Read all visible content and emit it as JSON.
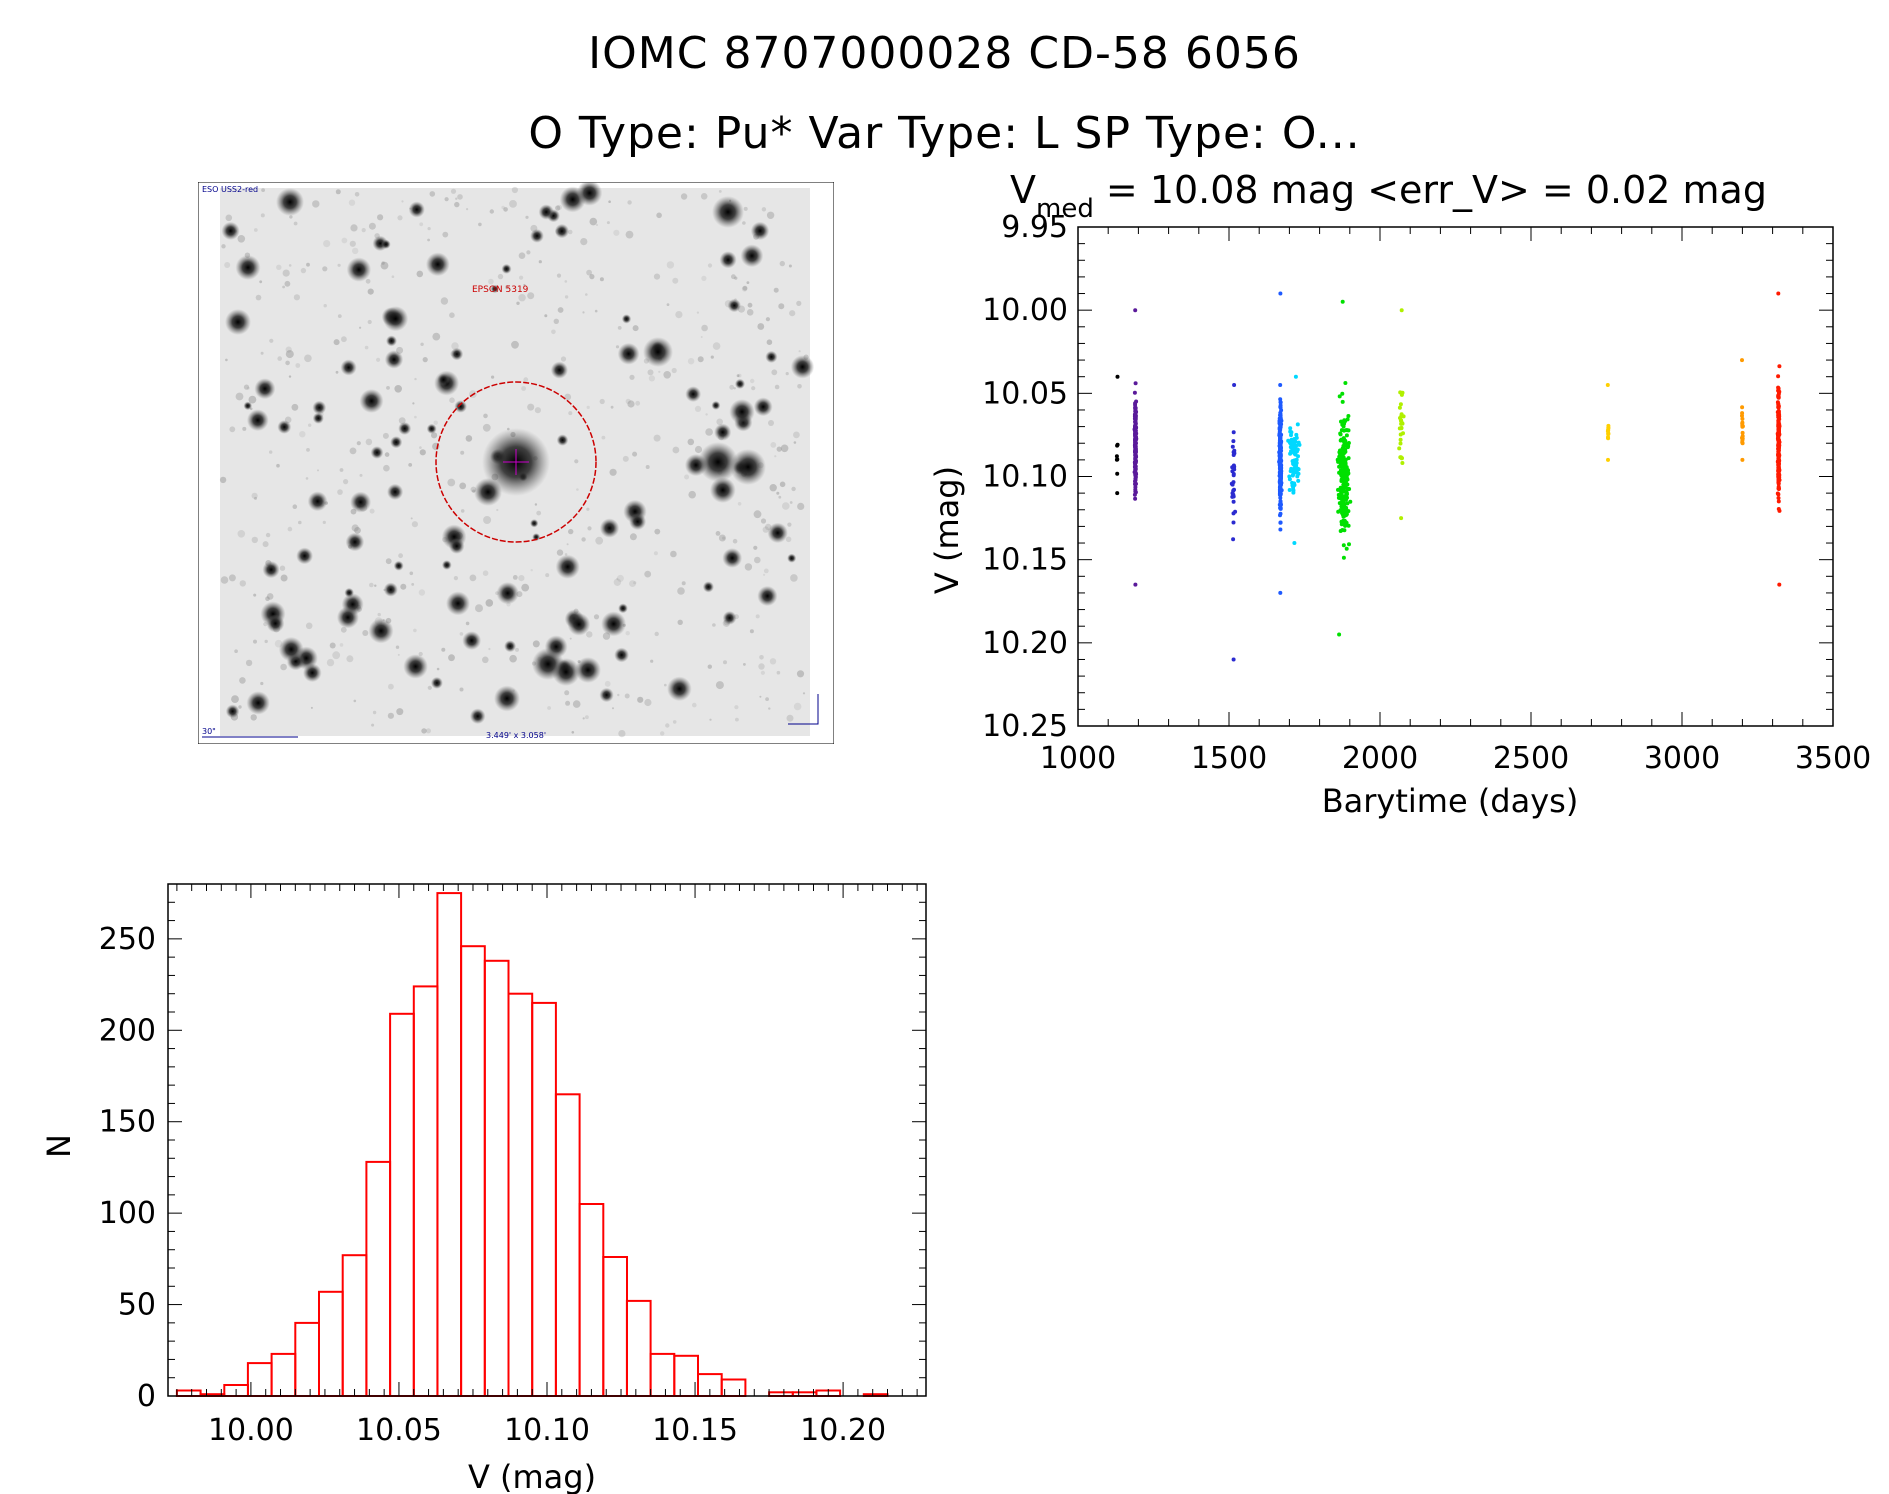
{
  "header": {
    "title_line1": "IOMC 8707000028   CD-58  6056",
    "title_line2": "O Type: Pu*  Var Type: L  SP Type: O..."
  },
  "finder_chart": {
    "survey_label": "ESO USS2-red",
    "object_label": "EPSON 5319",
    "scale_label": "30\"",
    "fov_label": "3.449' x 3.058'"
  },
  "chart_data": [
    {
      "type": "scatter",
      "title_prefix": "V",
      "title_subscript": "med",
      "title_rest": " = 10.08 mag <err_V> = 0.02 mag",
      "xlabel": "Barytime (days)",
      "ylabel": "V (mag)",
      "xlim": [
        1000,
        3500
      ],
      "ylim": [
        9.95,
        10.25
      ],
      "y_inverted": true,
      "xticks": [
        1000,
        1500,
        2000,
        2500,
        3000,
        3500
      ],
      "yticks": [
        "9.95",
        "10.00",
        "10.05",
        "10.10",
        "10.15",
        "10.20",
        "10.25"
      ],
      "series": [
        {
          "color": "#000000",
          "x_center": 1130,
          "y_center": 10.085,
          "y_min": 10.04,
          "y_max": 10.11,
          "x_spread": 4,
          "count": 8
        },
        {
          "color": "#5a1a9a",
          "x_center": 1190,
          "y_center": 10.08,
          "y_min": 10.0,
          "y_max": 10.165,
          "x_spread": 4,
          "count": 150
        },
        {
          "color": "#2b2bd0",
          "x_center": 1515,
          "y_center": 10.1,
          "y_min": 10.045,
          "y_max": 10.21,
          "x_spread": 8,
          "count": 30
        },
        {
          "color": "#1e5aff",
          "x_center": 1670,
          "y_center": 10.09,
          "y_min": 9.99,
          "y_max": 10.17,
          "x_spread": 5,
          "count": 260
        },
        {
          "color": "#00d8ff",
          "x_center": 1715,
          "y_center": 10.09,
          "y_min": 10.04,
          "y_max": 10.14,
          "x_spread": 30,
          "count": 90
        },
        {
          "color": "#00e000",
          "x_center": 1880,
          "y_center": 10.1,
          "y_min": 9.995,
          "y_max": 10.195,
          "x_spread": 28,
          "count": 220
        },
        {
          "color": "#b0f000",
          "x_center": 2070,
          "y_center": 10.07,
          "y_min": 10.0,
          "y_max": 10.125,
          "x_spread": 10,
          "count": 30
        },
        {
          "color": "#ffd000",
          "x_center": 2755,
          "y_center": 10.075,
          "y_min": 10.045,
          "y_max": 10.09,
          "x_spread": 3,
          "count": 14
        },
        {
          "color": "#ff9a00",
          "x_center": 3200,
          "y_center": 10.07,
          "y_min": 10.03,
          "y_max": 10.09,
          "x_spread": 3,
          "count": 18
        },
        {
          "color": "#ff1a00",
          "x_center": 3320,
          "y_center": 10.08,
          "y_min": 9.99,
          "y_max": 10.165,
          "x_spread": 4,
          "count": 200
        }
      ]
    },
    {
      "type": "bar",
      "subtype": "histogram",
      "xlabel": "V (mag)",
      "ylabel": "N",
      "xlim": [
        9.972,
        10.228
      ],
      "ylim": [
        0,
        280
      ],
      "xticks": [
        "10.00",
        "10.05",
        "10.10",
        "10.15",
        "10.20"
      ],
      "yticks": [
        "0",
        "50",
        "100",
        "150",
        "200",
        "250"
      ],
      "bar_color": "#ff0000",
      "bin_start": 9.975,
      "bin_width": 0.008,
      "values": [
        3,
        1,
        6,
        18,
        23,
        40,
        57,
        77,
        128,
        209,
        224,
        275,
        246,
        238,
        220,
        215,
        165,
        105,
        76,
        52,
        23,
        22,
        12,
        9,
        0,
        2,
        2,
        3,
        0,
        1
      ]
    }
  ]
}
